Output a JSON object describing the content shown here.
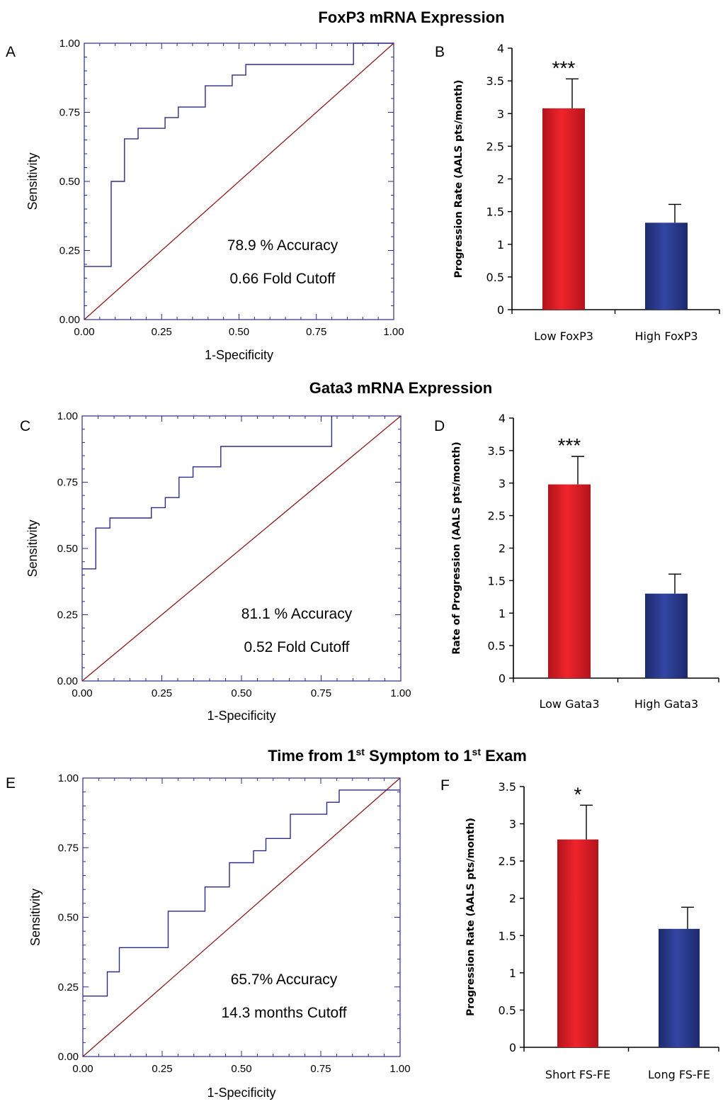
{
  "sections": [
    {
      "title": "FoxP3 mRNA Expression",
      "title_sup": []
    },
    {
      "title": "Gata3 mRNA Expression",
      "title_sup": []
    },
    {
      "title_parts": [
        "Time from 1",
        "st",
        " Symptom to 1",
        "st",
        " Exam"
      ]
    }
  ],
  "chart_data": [
    {
      "panel": "A",
      "type": "line",
      "xlabel": "1-Specificity",
      "ylabel": "Sensitivity",
      "xlim": [
        0,
        1
      ],
      "ylim": [
        0,
        1
      ],
      "tick_labels": [
        "0.00",
        "0.25",
        "0.50",
        "0.75",
        "1.00"
      ],
      "series": [
        {
          "x": [
            0,
            0.087,
            0.087,
            0.13,
            0.13,
            0.174,
            0.174,
            0.261,
            0.261,
            0.304,
            0.304,
            0.391,
            0.391,
            0.478,
            0.478,
            0.522,
            0.522,
            0.87,
            0.87,
            1.0
          ],
          "y": [
            0.192,
            0.192,
            0.5,
            0.5,
            0.654,
            0.654,
            0.692,
            0.692,
            0.731,
            0.731,
            0.769,
            0.769,
            0.846,
            0.846,
            0.885,
            0.885,
            0.923,
            0.923,
            1.0,
            1.0
          ]
        },
        {
          "x": [
            0,
            1
          ],
          "y": [
            0,
            1
          ]
        }
      ],
      "annotations": [
        "78.9 % Accuracy",
        "0.66 Fold Cutoff"
      ]
    },
    {
      "panel": "B",
      "type": "bar",
      "categories": [
        "Low FoxP3",
        "High FoxP3"
      ],
      "values": [
        3.08,
        1.33
      ],
      "errors": [
        0.45,
        0.28
      ],
      "ylabel": "Progression Rate (AALS pts/month)",
      "ylim": [
        0,
        4
      ],
      "yticks": [
        0,
        0.5,
        1,
        1.5,
        2,
        2.5,
        3,
        3.5,
        4
      ],
      "significance": [
        "***",
        ""
      ]
    },
    {
      "panel": "C",
      "type": "line",
      "xlabel": "1-Specificity",
      "ylabel": "Sensitivity",
      "xlim": [
        0,
        1
      ],
      "ylim": [
        0,
        1
      ],
      "tick_labels": [
        "0.00",
        "0.25",
        "0.50",
        "0.75",
        "1.00"
      ],
      "series": [
        {
          "x": [
            0,
            0.043,
            0.043,
            0.087,
            0.087,
            0.217,
            0.217,
            0.261,
            0.261,
            0.304,
            0.304,
            0.348,
            0.348,
            0.435,
            0.435,
            0.783,
            0.783
          ],
          "y": [
            0.423,
            0.423,
            0.577,
            0.577,
            0.615,
            0.615,
            0.654,
            0.654,
            0.692,
            0.692,
            0.769,
            0.769,
            0.808,
            0.808,
            0.885,
            0.885,
            1.0
          ]
        },
        {
          "x": [
            0,
            1
          ],
          "y": [
            0,
            1
          ]
        }
      ],
      "annotations": [
        "81.1 % Accuracy",
        "0.52 Fold Cutoff"
      ]
    },
    {
      "panel": "D",
      "type": "bar",
      "categories": [
        "Low Gata3",
        "High Gata3"
      ],
      "values": [
        2.98,
        1.3
      ],
      "errors": [
        0.43,
        0.3
      ],
      "ylabel": "Rate of Progression (AALS pts/month)",
      "ylim": [
        0,
        4
      ],
      "yticks": [
        0,
        0.5,
        1,
        1.5,
        2,
        2.5,
        3,
        3.5,
        4
      ],
      "significance": [
        "***",
        ""
      ]
    },
    {
      "panel": "E",
      "type": "line",
      "xlabel": "1-Specificity",
      "ylabel": "Sensitivity",
      "xlim": [
        0,
        1
      ],
      "ylim": [
        0,
        1
      ],
      "tick_labels": [
        "0.00",
        "0.25",
        "0.50",
        "0.75",
        "1.00"
      ],
      "series": [
        {
          "x": [
            0,
            0.077,
            0.077,
            0.115,
            0.115,
            0.269,
            0.269,
            0.385,
            0.385,
            0.462,
            0.462,
            0.538,
            0.538,
            0.577,
            0.577,
            0.654,
            0.654,
            0.769,
            0.769,
            0.808,
            0.808,
            1.0
          ],
          "y": [
            0.217,
            0.217,
            0.304,
            0.304,
            0.391,
            0.391,
            0.522,
            0.522,
            0.609,
            0.609,
            0.696,
            0.696,
            0.739,
            0.739,
            0.783,
            0.783,
            0.87,
            0.87,
            0.913,
            0.913,
            0.957,
            0.957
          ]
        },
        {
          "x": [
            0,
            1
          ],
          "y": [
            0,
            1
          ]
        }
      ],
      "annotations": [
        "65.7% Accuracy",
        "14.3 months Cutoff"
      ]
    },
    {
      "panel": "F",
      "type": "bar",
      "categories": [
        "Short FS-FE",
        "Long FS-FE"
      ],
      "values": [
        2.79,
        1.59
      ],
      "errors": [
        0.46,
        0.29
      ],
      "ylabel": "Progression Rate (AALS pts/month)",
      "ylim": [
        0,
        3.5
      ],
      "yticks": [
        0,
        0.5,
        1,
        1.5,
        2,
        2.5,
        3,
        3.5
      ],
      "significance": [
        "*",
        ""
      ]
    }
  ],
  "colors": {
    "roc_curve": "#2b2b8a",
    "diagonal": "#8b1a1a",
    "axis_frame": "#2b2b8a",
    "bar_low": "#e8202a",
    "bar_high": "#263a8c"
  }
}
